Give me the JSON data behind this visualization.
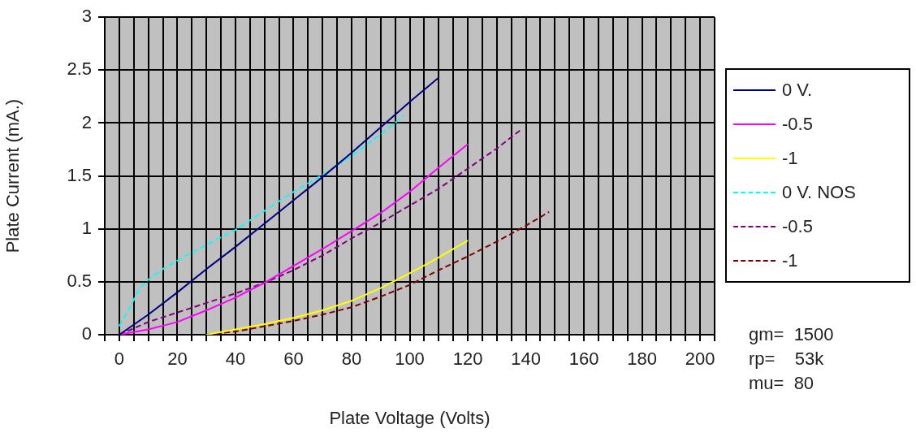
{
  "chart_data": {
    "type": "line",
    "xlabel": "Plate Voltage (Volts)",
    "ylabel": "Plate Current (mA.)",
    "xlim": [
      -5,
      205
    ],
    "ylim": [
      0,
      3
    ],
    "xticks": [
      {
        "value": -5,
        "label": null
      },
      0,
      {
        "value": 5,
        "label": null
      },
      {
        "value": 10,
        "label": null
      },
      {
        "value": 15,
        "label": null
      },
      20,
      {
        "value": 25,
        "label": null
      },
      {
        "value": 30,
        "label": null
      },
      {
        "value": 35,
        "label": null
      },
      40,
      {
        "value": 45,
        "label": null
      },
      {
        "value": 50,
        "label": null
      },
      {
        "value": 55,
        "label": null
      },
      60,
      {
        "value": 65,
        "label": null
      },
      {
        "value": 70,
        "label": null
      },
      {
        "value": 75,
        "label": null
      },
      80,
      {
        "value": 85,
        "label": null
      },
      {
        "value": 90,
        "label": null
      },
      {
        "value": 95,
        "label": null
      },
      100,
      {
        "value": 105,
        "label": null
      },
      {
        "value": 110,
        "label": null
      },
      {
        "value": 115,
        "label": null
      },
      120,
      {
        "value": 125,
        "label": null
      },
      {
        "value": 130,
        "label": null
      },
      {
        "value": 135,
        "label": null
      },
      140,
      {
        "value": 145,
        "label": null
      },
      {
        "value": 150,
        "label": null
      },
      {
        "value": 155,
        "label": null
      },
      160,
      {
        "value": 165,
        "label": null
      },
      {
        "value": 170,
        "label": null
      },
      {
        "value": 175,
        "label": null
      },
      180,
      {
        "value": 185,
        "label": null
      },
      {
        "value": 190,
        "label": null
      },
      {
        "value": 195,
        "label": null
      },
      200,
      {
        "value": 205,
        "label": null
      }
    ],
    "yticks": [
      0,
      0.5,
      1,
      1.5,
      2,
      2.5,
      3
    ],
    "grid": true,
    "legend": "right",
    "marker": "none",
    "series": [
      {
        "name": "0 V.",
        "color": "#000080",
        "line_style": "solid",
        "x": [
          0,
          10,
          20,
          30,
          40,
          50,
          60,
          70,
          80,
          90,
          100,
          110
        ],
        "values": [
          0,
          0.19,
          0.4,
          0.62,
          0.83,
          1.05,
          1.27,
          1.49,
          1.72,
          1.96,
          2.2,
          2.43
        ]
      },
      {
        "name": "-0.5",
        "color": "#ff00ff",
        "line_style": "solid",
        "x": [
          0,
          10,
          20,
          30,
          40,
          50,
          60,
          70,
          80,
          90,
          100,
          110,
          120
        ],
        "values": [
          0,
          0.05,
          0.12,
          0.23,
          0.35,
          0.49,
          0.65,
          0.81,
          0.98,
          1.15,
          1.35,
          1.58,
          1.8
        ]
      },
      {
        "name": "-1",
        "color": "#ffff00",
        "line_style": "solid",
        "x": [
          30,
          40,
          50,
          60,
          70,
          80,
          90,
          100,
          110,
          120
        ],
        "values": [
          0,
          0.05,
          0.1,
          0.16,
          0.23,
          0.32,
          0.44,
          0.58,
          0.73,
          0.89
        ]
      },
      {
        "name": "0 V. NOS",
        "color": "#00ffff",
        "line_style": "dashed",
        "x": [
          0,
          5,
          7,
          10,
          15,
          20,
          30,
          40,
          50,
          60,
          70,
          80,
          90,
          98
        ],
        "values": [
          0.08,
          0.33,
          0.44,
          0.52,
          0.62,
          0.7,
          0.85,
          0.99,
          1.17,
          1.35,
          1.51,
          1.69,
          1.89,
          2.07
        ]
      },
      {
        "name": "-0.5",
        "color": "#800080",
        "line_style": "dashed",
        "x": [
          0,
          10,
          20,
          30,
          40,
          50,
          60,
          70,
          80,
          90,
          100,
          110,
          120,
          130,
          138
        ],
        "values": [
          0,
          0.12,
          0.21,
          0.3,
          0.39,
          0.49,
          0.61,
          0.75,
          0.91,
          1.06,
          1.22,
          1.38,
          1.57,
          1.76,
          1.93
        ]
      },
      {
        "name": "-1",
        "color": "#800000",
        "line_style": "dashed",
        "x": [
          30,
          40,
          50,
          60,
          70,
          80,
          90,
          100,
          110,
          120,
          130,
          140,
          148
        ],
        "values": [
          0,
          0.03,
          0.08,
          0.13,
          0.19,
          0.26,
          0.36,
          0.47,
          0.61,
          0.74,
          0.88,
          1.03,
          1.16
        ]
      }
    ],
    "annotations": [
      "gm=  1500",
      "rp=    53k",
      "mu=  80"
    ]
  }
}
